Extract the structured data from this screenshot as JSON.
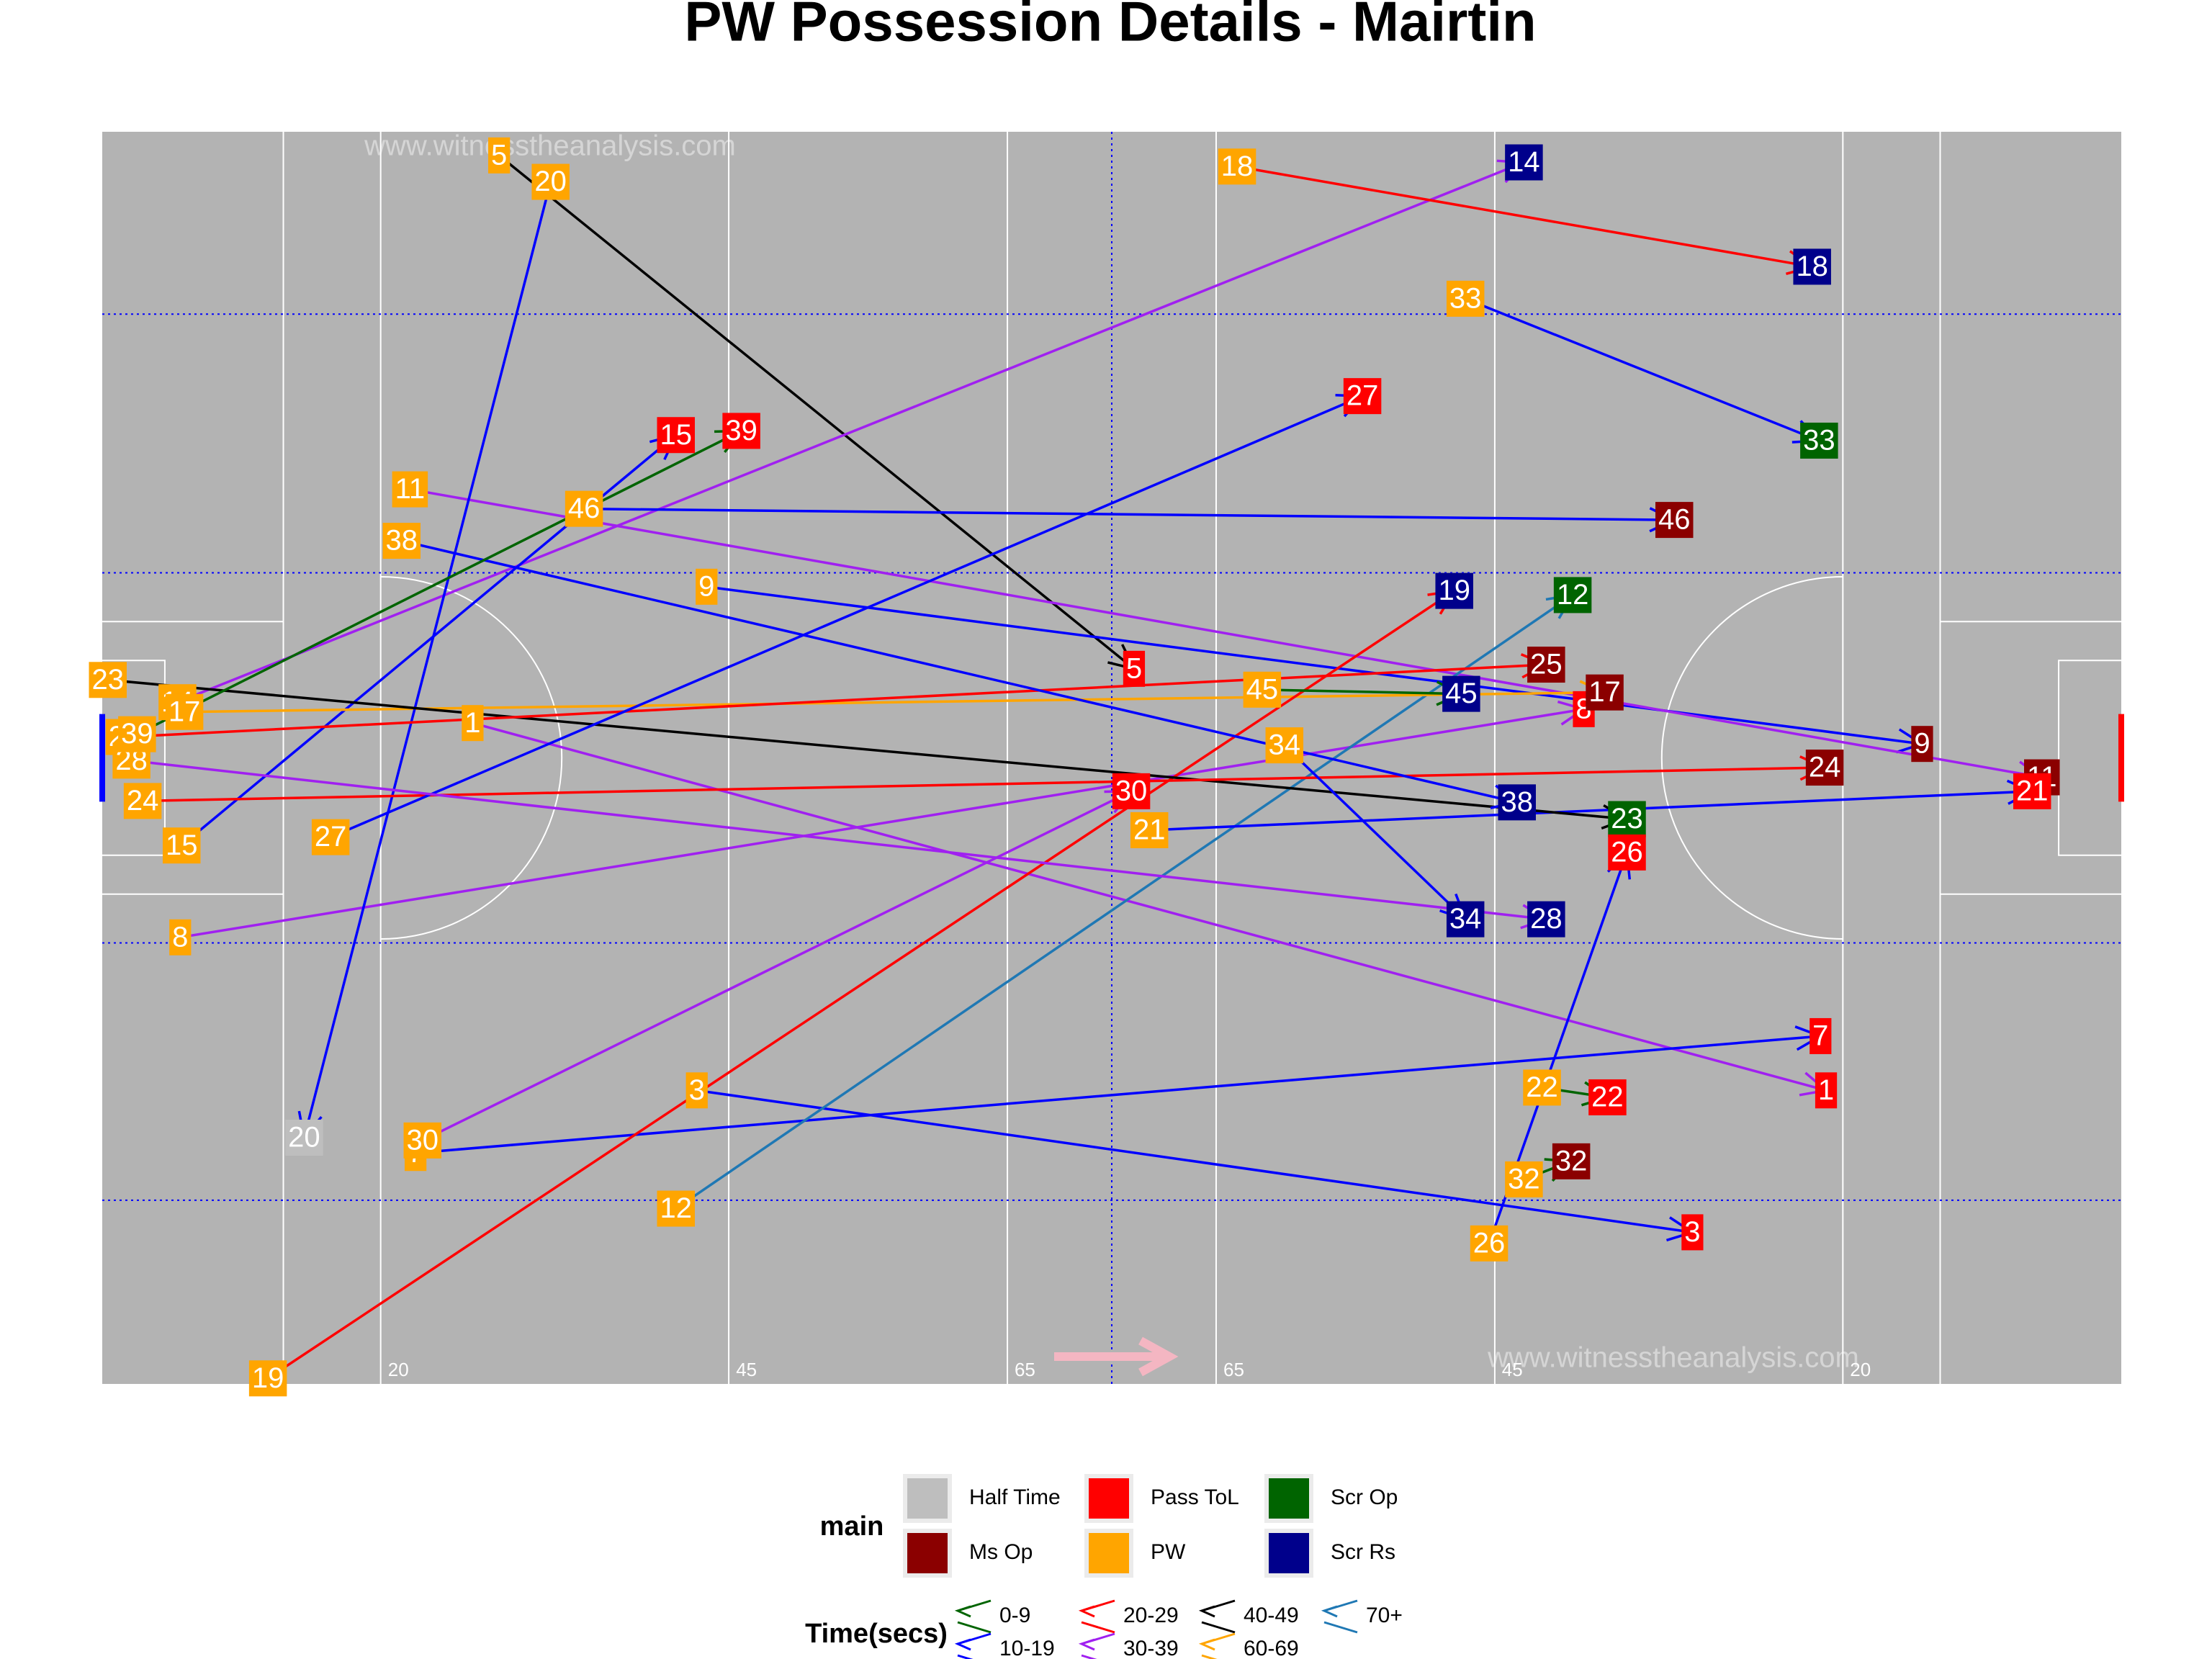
{
  "chart_data": {
    "type": "possession-map",
    "title": "PW Possession Details - Mairtin",
    "watermark": "www.witnesstheanalysis.com",
    "xlim": [
      0,
      145
    ],
    "ylim": [
      0,
      90
    ],
    "xticks": [
      20,
      45,
      65,
      {
        "value": 80,
        "label": "65"
      },
      {
        "value": 100,
        "label": "45"
      },
      {
        "value": 125,
        "label": "20"
      }
    ],
    "legend_title": "main",
    "time_legend_title": "Time(secs)",
    "start_category": "PW",
    "categories": [
      {
        "name": "Half Time",
        "color": "#bebebe"
      },
      {
        "name": "Ms Op",
        "color": "#8b0000"
      },
      {
        "name": "Pass ToL",
        "color": "#ff0000"
      },
      {
        "name": "PW",
        "color": "#ffa500"
      },
      {
        "name": "Scr Op",
        "color": "#006400"
      },
      {
        "name": "Scr Rs",
        "color": "#00008b"
      }
    ],
    "time_buckets": [
      {
        "name": "0-9",
        "color": "#006400"
      },
      {
        "name": "10-19",
        "color": "#0000ff"
      },
      {
        "name": "20-29",
        "color": "#ff0000"
      },
      {
        "name": "30-39",
        "color": "#a020f0"
      },
      {
        "name": "40-49",
        "color": "#000000"
      },
      {
        "name": "60-69",
        "color": "#ffa500"
      },
      {
        "name": "70+",
        "color": "#1f78b4"
      }
    ],
    "possessions": [
      {
        "id": 1,
        "x": 26.6,
        "y": 42.5,
        "end_x": 123.8,
        "end_y": 68.9,
        "result": "Pass ToL",
        "time": "30-39"
      },
      {
        "id": 3,
        "x": 42.7,
        "y": 68.9,
        "end_x": 114.2,
        "end_y": 79.1,
        "result": "Pass ToL",
        "time": "10-19"
      },
      {
        "id": 5,
        "x": 28.5,
        "y": 1.7,
        "end_x": 74.1,
        "end_y": 38.6,
        "result": "Pass ToL",
        "time": "40-49"
      },
      {
        "id": 7,
        "x": 22.5,
        "y": 73.4,
        "end_x": 123.4,
        "end_y": 65.0,
        "result": "Pass ToL",
        "time": "10-19"
      },
      {
        "id": 8,
        "x": 5.6,
        "y": 57.9,
        "end_x": 106.4,
        "end_y": 41.5,
        "result": "Pass ToL",
        "time": "30-39"
      },
      {
        "id": 9,
        "x": 43.4,
        "y": 32.7,
        "end_x": 130.7,
        "end_y": 44.0,
        "result": "Ms Op",
        "time": "10-19"
      },
      {
        "id": 11,
        "x": 22.1,
        "y": 25.7,
        "end_x": 139.3,
        "end_y": 46.4,
        "result": "Ms Op",
        "time": "30-39"
      },
      {
        "id": 12,
        "x": 41.2,
        "y": 77.4,
        "end_x": 105.6,
        "end_y": 33.3,
        "result": "Scr Op",
        "time": "70+"
      },
      {
        "id": 14,
        "x": 5.4,
        "y": 41.0,
        "end_x": 102.1,
        "end_y": 2.2,
        "result": "Scr Rs",
        "time": "30-39"
      },
      {
        "id": 15,
        "x": 5.7,
        "y": 51.3,
        "end_x": 41.2,
        "end_y": 21.8,
        "result": "Pass ToL",
        "time": "10-19"
      },
      {
        "id": 17,
        "x": 5.9,
        "y": 41.7,
        "end_x": 107.9,
        "end_y": 40.3,
        "result": "Ms Op",
        "time": "60-69"
      },
      {
        "id": 18,
        "x": 81.5,
        "y": 2.5,
        "end_x": 122.8,
        "end_y": 9.7,
        "result": "Scr Rs",
        "time": "20-29"
      },
      {
        "id": 19,
        "x": 11.9,
        "y": 89.6,
        "end_x": 97.1,
        "end_y": 33.0,
        "result": "Scr Rs",
        "time": "20-29"
      },
      {
        "id": 20,
        "x": 32.2,
        "y": 3.6,
        "end_x": 14.5,
        "end_y": 72.3,
        "result": "Half Time",
        "time": "10-19"
      },
      {
        "id": 21,
        "x": 75.2,
        "y": 50.2,
        "end_x": 138.6,
        "end_y": 47.4,
        "result": "Pass ToL",
        "time": "10-19"
      },
      {
        "id": 22,
        "x": 103.4,
        "y": 68.7,
        "end_x": 108.1,
        "end_y": 69.4,
        "result": "Pass ToL",
        "time": "0-9"
      },
      {
        "id": 23,
        "x": 0.4,
        "y": 39.4,
        "end_x": 109.5,
        "end_y": 49.4,
        "result": "Scr Op",
        "time": "40-49"
      },
      {
        "id": 24,
        "x": 2.9,
        "y": 48.1,
        "end_x": 123.7,
        "end_y": 45.7,
        "result": "Ms Op",
        "time": "20-29"
      },
      {
        "id": 25,
        "x": 1.6,
        "y": 43.5,
        "end_x": 103.7,
        "end_y": 38.3,
        "result": "Ms Op",
        "time": "20-29"
      },
      {
        "id": 26,
        "x": 99.6,
        "y": 79.9,
        "end_x": 109.5,
        "end_y": 51.8,
        "result": "Pass ToL",
        "time": "10-19"
      },
      {
        "id": 27,
        "x": 16.4,
        "y": 50.7,
        "end_x": 90.5,
        "end_y": 19.0,
        "result": "Pass ToL",
        "time": "10-19"
      },
      {
        "id": 28,
        "x": 2.1,
        "y": 45.2,
        "end_x": 103.7,
        "end_y": 56.6,
        "result": "Scr Rs",
        "time": "30-39"
      },
      {
        "id": 30,
        "x": 23.0,
        "y": 72.5,
        "end_x": 73.9,
        "end_y": 47.4,
        "result": "Pass ToL",
        "time": "30-39"
      },
      {
        "id": 32,
        "x": 102.1,
        "y": 75.3,
        "end_x": 105.5,
        "end_y": 74.0,
        "result": "Ms Op",
        "time": "0-9"
      },
      {
        "id": 33,
        "x": 97.9,
        "y": 12.0,
        "end_x": 123.3,
        "end_y": 22.2,
        "result": "Scr Op",
        "time": "10-19"
      },
      {
        "id": 34,
        "x": 84.9,
        "y": 44.1,
        "end_x": 97.9,
        "end_y": 56.6,
        "result": "Scr Rs",
        "time": "10-19"
      },
      {
        "id": 38,
        "x": 21.5,
        "y": 29.4,
        "end_x": 101.6,
        "end_y": 48.2,
        "result": "Scr Rs",
        "time": "10-19"
      },
      {
        "id": 39,
        "x": 2.5,
        "y": 43.3,
        "end_x": 45.9,
        "end_y": 21.5,
        "result": "Pass ToL",
        "time": "0-9"
      },
      {
        "id": 45,
        "x": 83.3,
        "y": 40.1,
        "end_x": 97.6,
        "end_y": 40.4,
        "result": "Scr Rs",
        "time": "0-9"
      },
      {
        "id": 46,
        "x": 34.6,
        "y": 27.1,
        "end_x": 112.9,
        "end_y": 27.9,
        "result": "Ms Op",
        "time": "10-19"
      }
    ]
  }
}
